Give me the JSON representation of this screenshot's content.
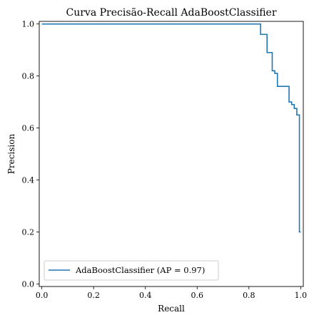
{
  "chart_data": {
    "type": "line",
    "title": "Curva Precisão-Recall AdaBoostClassifier",
    "xlabel": "Recall",
    "ylabel": "Precision",
    "xlim": [
      -0.01,
      1.01
    ],
    "ylim": [
      -0.01,
      1.01
    ],
    "xticks": [
      0.0,
      0.2,
      0.4,
      0.6,
      0.8,
      1.0
    ],
    "xtick_labels": [
      "0.0",
      "0.2",
      "0.4",
      "0.6",
      "0.8",
      "1.0"
    ],
    "yticks": [
      0.0,
      0.2,
      0.4,
      0.6,
      0.8,
      1.0
    ],
    "ytick_labels": [
      "0.0",
      "0.2",
      "0.4",
      "0.6",
      "0.8",
      "1.0"
    ],
    "grid": false,
    "legend_position": "lower-left",
    "series": [
      {
        "name": "AdaBoostClassifier (AP = 0.97)",
        "color": "#1f77b4",
        "step": "post",
        "points": [
          [
            0.0,
            1.0
          ],
          [
            0.845,
            1.0
          ],
          [
            0.845,
            0.96
          ],
          [
            0.87,
            0.96
          ],
          [
            0.87,
            0.89
          ],
          [
            0.89,
            0.89
          ],
          [
            0.89,
            0.82
          ],
          [
            0.9,
            0.82
          ],
          [
            0.9,
            0.81
          ],
          [
            0.91,
            0.81
          ],
          [
            0.91,
            0.76
          ],
          [
            0.955,
            0.76
          ],
          [
            0.955,
            0.7
          ],
          [
            0.965,
            0.7
          ],
          [
            0.965,
            0.69
          ],
          [
            0.975,
            0.69
          ],
          [
            0.975,
            0.675
          ],
          [
            0.985,
            0.675
          ],
          [
            0.985,
            0.65
          ],
          [
            0.995,
            0.65
          ],
          [
            0.995,
            0.2
          ],
          [
            1.0,
            0.2
          ]
        ]
      }
    ]
  }
}
